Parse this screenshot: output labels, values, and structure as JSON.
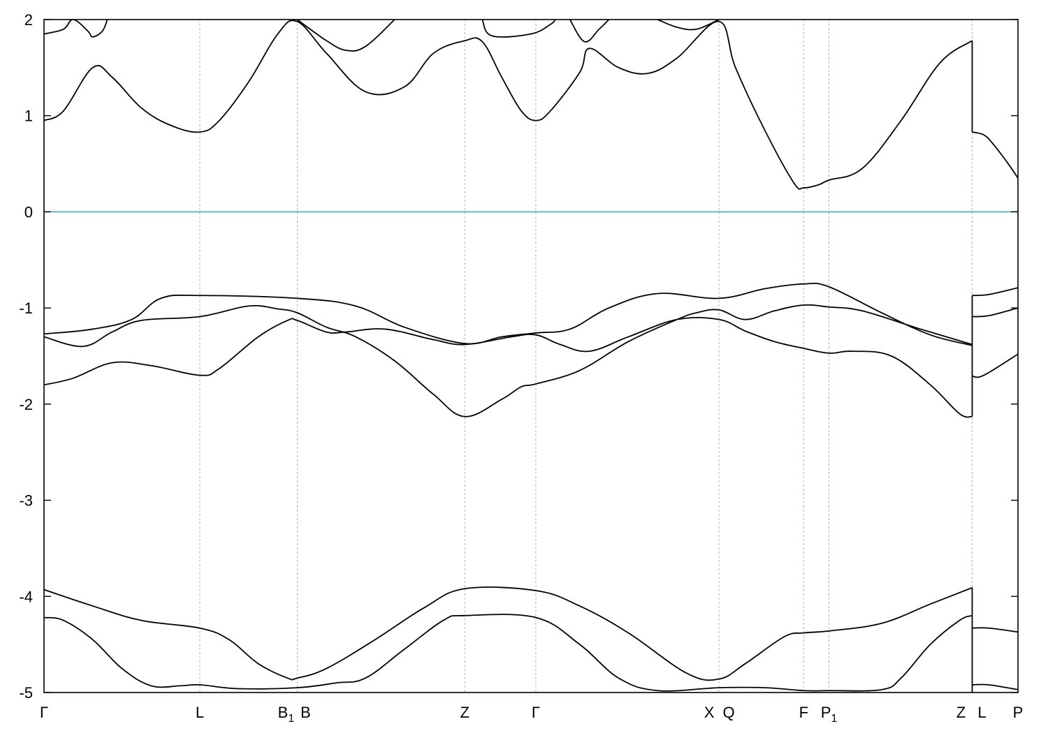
{
  "chart_data": {
    "type": "line",
    "title": "",
    "xlabel": "",
    "ylabel": "",
    "ylim": [
      -5,
      2
    ],
    "yticks": [
      -5,
      -4,
      -3,
      -2,
      -1,
      0,
      1,
      2
    ],
    "grid": "vertical dashed lines at high-symmetry points",
    "legend": "none",
    "fermi_level": {
      "value": 0,
      "color": "#4aa6c4"
    },
    "line_color": "#000000",
    "kpoints": [
      {
        "x": 0.0,
        "label": "Γ",
        "sub": ""
      },
      {
        "x": 0.16,
        "label": "L",
        "sub": ""
      },
      {
        "x": 0.26,
        "label": "B",
        "sub": "1"
      },
      {
        "x": 0.26,
        "label": "B",
        "sub": ""
      },
      {
        "x": 0.432,
        "label": "Z",
        "sub": ""
      },
      {
        "x": 0.505,
        "label": "Γ",
        "sub": ""
      },
      {
        "x": 0.693,
        "label": "X",
        "sub": ""
      },
      {
        "x": 0.693,
        "label": "Q",
        "sub": ""
      },
      {
        "x": 0.78,
        "label": "F",
        "sub": ""
      },
      {
        "x": 0.806,
        "label": "P",
        "sub": "1"
      },
      {
        "x": 0.953,
        "label": "Z",
        "sub": ""
      },
      {
        "x": 0.953,
        "label": "L",
        "sub": ""
      },
      {
        "x": 1.0,
        "label": "P",
        "sub": ""
      }
    ],
    "series": [
      {
        "values": [
          [
            0.0,
            -4.22
          ],
          [
            0.02,
            -4.25
          ],
          [
            0.05,
            -4.45
          ],
          [
            0.08,
            -4.75
          ],
          [
            0.11,
            -4.93
          ],
          [
            0.14,
            -4.93
          ],
          [
            0.16,
            -4.92
          ],
          [
            0.2,
            -4.96
          ],
          [
            0.26,
            -4.95
          ],
          [
            0.3,
            -4.9
          ],
          [
            0.33,
            -4.85
          ],
          [
            0.37,
            -4.55
          ],
          [
            0.41,
            -4.25
          ],
          [
            0.432,
            -4.2
          ],
          [
            0.505,
            -4.22
          ],
          [
            0.55,
            -4.5
          ],
          [
            0.59,
            -4.85
          ],
          [
            0.63,
            -4.98
          ],
          [
            0.693,
            -4.95
          ],
          [
            0.74,
            -4.95
          ],
          [
            0.78,
            -4.98
          ],
          [
            0.806,
            -4.98
          ],
          [
            0.86,
            -4.97
          ],
          [
            0.88,
            -4.85
          ],
          [
            0.91,
            -4.5
          ],
          [
            0.94,
            -4.25
          ],
          [
            0.953,
            -4.2
          ]
        ]
      },
      {
        "values": [
          [
            0.0,
            -3.93
          ],
          [
            0.05,
            -4.1
          ],
          [
            0.1,
            -4.25
          ],
          [
            0.16,
            -4.33
          ],
          [
            0.19,
            -4.45
          ],
          [
            0.22,
            -4.7
          ],
          [
            0.25,
            -4.85
          ],
          [
            0.26,
            -4.85
          ],
          [
            0.29,
            -4.75
          ],
          [
            0.34,
            -4.45
          ],
          [
            0.39,
            -4.12
          ],
          [
            0.432,
            -3.92
          ],
          [
            0.505,
            -3.94
          ],
          [
            0.55,
            -4.1
          ],
          [
            0.6,
            -4.38
          ],
          [
            0.66,
            -4.8
          ],
          [
            0.693,
            -4.86
          ],
          [
            0.72,
            -4.7
          ],
          [
            0.76,
            -4.42
          ],
          [
            0.78,
            -4.38
          ],
          [
            0.806,
            -4.36
          ],
          [
            0.86,
            -4.28
          ],
          [
            0.91,
            -4.08
          ],
          [
            0.953,
            -3.91
          ]
        ]
      },
      {
        "values": [
          [
            0.0,
            -1.8
          ],
          [
            0.03,
            -1.73
          ],
          [
            0.07,
            -1.57
          ],
          [
            0.11,
            -1.6
          ],
          [
            0.16,
            -1.7
          ],
          [
            0.18,
            -1.63
          ],
          [
            0.22,
            -1.3
          ],
          [
            0.25,
            -1.13
          ],
          [
            0.26,
            -1.13
          ],
          [
            0.29,
            -1.25
          ],
          [
            0.31,
            -1.25
          ],
          [
            0.35,
            -1.22
          ],
          [
            0.4,
            -1.33
          ],
          [
            0.432,
            -1.38
          ],
          [
            0.48,
            -1.3
          ],
          [
            0.505,
            -1.28
          ],
          [
            0.53,
            -1.38
          ],
          [
            0.56,
            -1.45
          ],
          [
            0.6,
            -1.3
          ],
          [
            0.65,
            -1.12
          ],
          [
            0.693,
            -1.12
          ],
          [
            0.72,
            -1.24
          ],
          [
            0.75,
            -1.35
          ],
          [
            0.78,
            -1.42
          ],
          [
            0.806,
            -1.47
          ],
          [
            0.83,
            -1.45
          ],
          [
            0.87,
            -1.5
          ],
          [
            0.91,
            -1.8
          ],
          [
            0.94,
            -2.1
          ],
          [
            0.953,
            -2.13
          ]
        ]
      },
      {
        "values": [
          [
            0.0,
            -1.3
          ],
          [
            0.04,
            -1.4
          ],
          [
            0.07,
            -1.25
          ],
          [
            0.1,
            -1.13
          ],
          [
            0.16,
            -1.09
          ],
          [
            0.21,
            -0.98
          ],
          [
            0.24,
            -1.01
          ],
          [
            0.26,
            -1.05
          ],
          [
            0.29,
            -1.2
          ],
          [
            0.32,
            -1.3
          ],
          [
            0.36,
            -1.55
          ],
          [
            0.4,
            -1.9
          ],
          [
            0.432,
            -2.13
          ],
          [
            0.47,
            -1.95
          ],
          [
            0.49,
            -1.82
          ],
          [
            0.505,
            -1.79
          ],
          [
            0.55,
            -1.65
          ],
          [
            0.6,
            -1.35
          ],
          [
            0.65,
            -1.12
          ],
          [
            0.67,
            -1.05
          ],
          [
            0.693,
            -1.02
          ],
          [
            0.72,
            -1.12
          ],
          [
            0.75,
            -1.03
          ],
          [
            0.78,
            -0.97
          ],
          [
            0.806,
            -0.99
          ],
          [
            0.84,
            -1.03
          ],
          [
            0.9,
            -1.22
          ],
          [
            0.953,
            -1.38
          ]
        ]
      },
      {
        "values": [
          [
            0.0,
            -1.27
          ],
          [
            0.05,
            -1.22
          ],
          [
            0.09,
            -1.12
          ],
          [
            0.12,
            -0.9
          ],
          [
            0.16,
            -0.87
          ],
          [
            0.26,
            -0.9
          ],
          [
            0.32,
            -0.98
          ],
          [
            0.37,
            -1.2
          ],
          [
            0.432,
            -1.37
          ],
          [
            0.47,
            -1.3
          ],
          [
            0.505,
            -1.26
          ],
          [
            0.54,
            -1.22
          ],
          [
            0.58,
            -1.0
          ],
          [
            0.63,
            -0.85
          ],
          [
            0.693,
            -0.9
          ],
          [
            0.74,
            -0.8
          ],
          [
            0.78,
            -0.75
          ],
          [
            0.806,
            -0.78
          ],
          [
            0.86,
            -1.05
          ],
          [
            0.91,
            -1.28
          ],
          [
            0.953,
            -1.39
          ]
        ]
      },
      {
        "values": [
          [
            0.0,
            0.95
          ],
          [
            0.02,
            1.05
          ],
          [
            0.05,
            1.5
          ],
          [
            0.07,
            1.4
          ],
          [
            0.1,
            1.08
          ],
          [
            0.13,
            0.9
          ],
          [
            0.16,
            0.83
          ],
          [
            0.18,
            0.95
          ],
          [
            0.21,
            1.35
          ],
          [
            0.24,
            1.85
          ],
          [
            0.26,
            1.98
          ],
          [
            0.29,
            1.65
          ],
          [
            0.33,
            1.25
          ],
          [
            0.37,
            1.3
          ],
          [
            0.4,
            1.65
          ],
          [
            0.432,
            1.78
          ],
          [
            0.45,
            1.77
          ],
          [
            0.47,
            1.4
          ],
          [
            0.49,
            1.05
          ],
          [
            0.505,
            0.95
          ],
          [
            0.52,
            1.05
          ],
          [
            0.55,
            1.45
          ],
          [
            0.56,
            1.7
          ],
          [
            0.59,
            1.5
          ],
          [
            0.62,
            1.44
          ],
          [
            0.65,
            1.6
          ],
          [
            0.693,
            1.98
          ],
          [
            0.71,
            1.5
          ],
          [
            0.74,
            0.85
          ],
          [
            0.77,
            0.3
          ],
          [
            0.78,
            0.25
          ],
          [
            0.795,
            0.28
          ],
          [
            0.806,
            0.33
          ],
          [
            0.84,
            0.45
          ],
          [
            0.88,
            0.95
          ],
          [
            0.92,
            1.55
          ],
          [
            0.953,
            1.78
          ]
        ]
      },
      {
        "values": [
          [
            0.0,
            1.85
          ],
          [
            0.02,
            1.9
          ],
          [
            0.03,
            2.0
          ],
          [
            0.045,
            1.88
          ],
          [
            0.05,
            1.82
          ],
          [
            0.06,
            1.88
          ],
          [
            0.065,
            2.0
          ]
        ]
      },
      {
        "values": [
          [
            0.26,
            2.0
          ],
          [
            0.29,
            1.78
          ],
          [
            0.31,
            1.68
          ],
          [
            0.33,
            1.72
          ],
          [
            0.36,
            2.0
          ]
        ]
      },
      {
        "values": [
          [
            0.45,
            2.0
          ],
          [
            0.46,
            1.83
          ],
          [
            0.5,
            1.85
          ],
          [
            0.52,
            1.95
          ],
          [
            0.525,
            2.0
          ]
        ]
      },
      {
        "values": [
          [
            0.54,
            2.0
          ],
          [
            0.555,
            1.77
          ],
          [
            0.57,
            1.9
          ],
          [
            0.58,
            2.0
          ]
        ]
      },
      {
        "values": [
          [
            0.63,
            2.0
          ],
          [
            0.65,
            1.92
          ],
          [
            0.67,
            1.9
          ],
          [
            0.693,
            2.0
          ]
        ]
      },
      {
        "values": [
          [
            0.953,
            -0.87
          ],
          [
            0.97,
            -0.86
          ],
          [
            1.0,
            -0.79
          ]
        ]
      },
      {
        "values": [
          [
            0.953,
            -1.09
          ],
          [
            0.97,
            -1.08
          ],
          [
            1.0,
            -1.0
          ]
        ]
      },
      {
        "values": [
          [
            0.953,
            -1.71
          ],
          [
            0.965,
            -1.7
          ],
          [
            1.0,
            -1.48
          ]
        ]
      },
      {
        "values": [
          [
            0.953,
            -4.33
          ],
          [
            0.97,
            -4.33
          ],
          [
            1.0,
            -4.37
          ]
        ]
      },
      {
        "values": [
          [
            0.953,
            -4.92
          ],
          [
            0.97,
            -4.92
          ],
          [
            1.0,
            -4.97
          ]
        ]
      },
      {
        "values": [
          [
            0.953,
            0.83
          ],
          [
            0.965,
            0.8
          ],
          [
            0.975,
            0.7
          ],
          [
            0.99,
            0.5
          ],
          [
            1.0,
            0.35
          ]
        ]
      }
    ]
  }
}
